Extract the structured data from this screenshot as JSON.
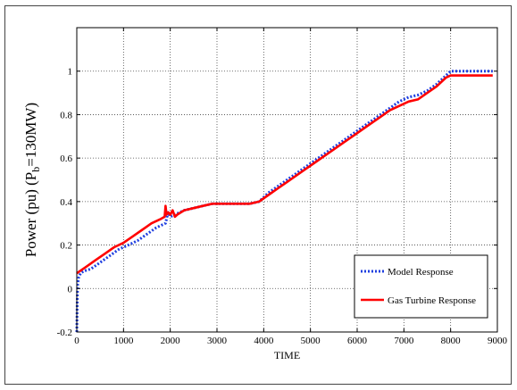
{
  "chart_data": {
    "type": "line",
    "xlabel": "TIME",
    "ylabel": "Power (pu)    (P",
    "ylabel_sub": "b",
    "ylabel_tail": "=130MW)",
    "xlim": [
      0,
      9000
    ],
    "ylim": [
      -0.2,
      1.2
    ],
    "xticks": [
      0,
      1000,
      2000,
      3000,
      4000,
      5000,
      6000,
      7000,
      8000,
      9000
    ],
    "yticks": [
      -0.2,
      0,
      0.2,
      0.4,
      0.6,
      0.8,
      1
    ],
    "grid": true,
    "legend_position": "lower-right",
    "series": [
      {
        "name": "Model Response",
        "color": "#1f3fe0",
        "style": "dotted",
        "x": [
          0,
          10,
          20,
          40,
          80,
          150,
          300,
          500,
          700,
          900,
          1100,
          1300,
          1500,
          1700,
          1900,
          1950,
          2000,
          2100,
          2300,
          2500,
          2700,
          2900,
          3100,
          3300,
          3500,
          3700,
          3900,
          4100,
          4300,
          4500,
          4700,
          4900,
          5100,
          5300,
          5500,
          5700,
          5900,
          6100,
          6300,
          6500,
          6700,
          6900,
          7100,
          7300,
          7500,
          7700,
          7900,
          8000,
          8200,
          8400,
          8600,
          8800,
          8900
        ],
        "y": [
          -0.2,
          -0.05,
          0.02,
          0.05,
          0.07,
          0.08,
          0.09,
          0.12,
          0.15,
          0.18,
          0.2,
          0.22,
          0.25,
          0.28,
          0.3,
          0.35,
          0.33,
          0.34,
          0.36,
          0.37,
          0.38,
          0.39,
          0.39,
          0.39,
          0.39,
          0.39,
          0.4,
          0.44,
          0.47,
          0.5,
          0.53,
          0.56,
          0.59,
          0.62,
          0.65,
          0.68,
          0.71,
          0.74,
          0.77,
          0.8,
          0.83,
          0.86,
          0.88,
          0.89,
          0.91,
          0.94,
          0.98,
          1.0,
          1.0,
          1.0,
          1.0,
          1.0,
          1.0
        ]
      },
      {
        "name": "Gas Turbine Response",
        "color": "#ff0000",
        "style": "solid",
        "x": [
          0,
          200,
          400,
          600,
          800,
          1000,
          1200,
          1400,
          1600,
          1800,
          1880,
          1900,
          1920,
          1960,
          2000,
          2050,
          2100,
          2150,
          2300,
          2500,
          2700,
          2900,
          3100,
          3300,
          3500,
          3700,
          3900,
          4100,
          4300,
          4500,
          4700,
          4900,
          5100,
          5300,
          5500,
          5700,
          5900,
          6100,
          6300,
          6500,
          6700,
          6900,
          7100,
          7300,
          7500,
          7700,
          7900,
          8000,
          8200,
          8400,
          8600,
          8800,
          8900
        ],
        "y": [
          0.07,
          0.1,
          0.13,
          0.16,
          0.19,
          0.21,
          0.24,
          0.27,
          0.3,
          0.32,
          0.33,
          0.38,
          0.34,
          0.35,
          0.34,
          0.36,
          0.33,
          0.34,
          0.36,
          0.37,
          0.38,
          0.39,
          0.39,
          0.39,
          0.39,
          0.39,
          0.4,
          0.43,
          0.46,
          0.49,
          0.52,
          0.55,
          0.58,
          0.61,
          0.64,
          0.67,
          0.7,
          0.73,
          0.76,
          0.79,
          0.82,
          0.84,
          0.86,
          0.87,
          0.9,
          0.93,
          0.97,
          0.98,
          0.98,
          0.98,
          0.98,
          0.98,
          0.98
        ]
      }
    ]
  }
}
